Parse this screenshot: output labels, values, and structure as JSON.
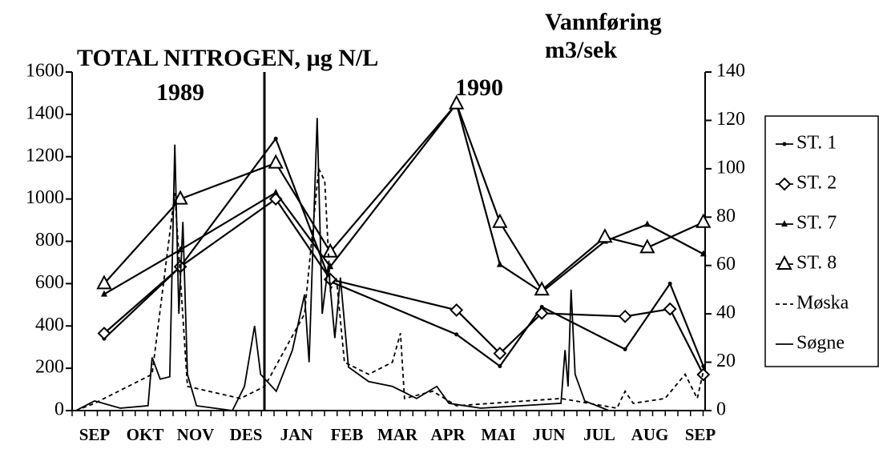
{
  "chart_data": {
    "type": "line",
    "title": "TOTAL NITROGEN,  µg N/L",
    "y2_label": [
      "Vannføring",
      "m3/sek"
    ],
    "annotations": [
      "1989",
      "1990"
    ],
    "categories": [
      "SEP",
      "OKT",
      "NOV",
      "DES",
      "JAN",
      "FEB",
      "MAR",
      "APR",
      "MAI",
      "JUN",
      "JUL",
      "AUG",
      "SEP"
    ],
    "ylim": [
      0,
      1600
    ],
    "yticks": [
      0,
      200,
      400,
      600,
      800,
      1000,
      1200,
      1400,
      1600
    ],
    "y2lim": [
      0,
      140
    ],
    "y2ticks": [
      0,
      20,
      40,
      60,
      80,
      100,
      120,
      140
    ],
    "series": [
      {
        "name": "ST. 1",
        "color": "#000000",
        "marker": "dot",
        "x": [
          0.19,
          1.7,
          3.59,
          4.67,
          7.17,
          8.03,
          8.86,
          10.51,
          11.4,
          12.06
        ],
        "values": [
          340,
          680,
          1285,
          610,
          360,
          210,
          490,
          290,
          600,
          210
        ]
      },
      {
        "name": "ST. 2",
        "color": "#000000",
        "marker": "diamond",
        "x": [
          0.19,
          1.7,
          3.59,
          4.67,
          7.17,
          8.03,
          8.86,
          10.51,
          11.4,
          12.06
        ],
        "values": [
          365,
          680,
          1000,
          620,
          475,
          270,
          460,
          445,
          480,
          170
        ]
      },
      {
        "name": "ST. 7",
        "color": "#000000",
        "marker": "triangle-filled",
        "x": [
          0.19,
          1.7,
          3.59,
          4.67,
          7.17,
          8.03,
          8.86,
          10.11,
          10.95,
          12.06
        ],
        "values": [
          550,
          760,
          1030,
          680,
          1450,
          690,
          560,
          800,
          880,
          740
        ]
      },
      {
        "name": "ST. 8",
        "color": "#000000",
        "marker": "triangle-open",
        "x": [
          0.19,
          1.7,
          3.59,
          4.67,
          7.17,
          8.03,
          8.86,
          10.11,
          10.95,
          12.06
        ],
        "values": [
          600,
          1000,
          1170,
          750,
          1450,
          890,
          570,
          820,
          770,
          890
        ]
      },
      {
        "name": "Møska",
        "color": "#000000",
        "axis": "y2",
        "dashed": true,
        "x": [
          -0.37,
          0,
          1.14,
          1.59,
          1.84,
          2.89,
          3.37,
          4.16,
          4.44,
          4.56,
          4.67,
          4.79,
          4.95,
          5.43,
          5.9,
          6.06,
          6.14,
          6.7,
          7.17,
          9.24,
          10.35,
          10.51,
          10.67,
          11.3,
          11.7,
          11.94,
          12.1
        ],
        "values": [
          0,
          3,
          15,
          90,
          10,
          5,
          10,
          40,
          100,
          95,
          50,
          55,
          20,
          15,
          20,
          32,
          5,
          8,
          2,
          5,
          1,
          8,
          3,
          5,
          15,
          5,
          20
        ]
      },
      {
        "name": "Søgne",
        "color": "#000000",
        "axis": "y2",
        "x": [
          -0.37,
          0,
          0.51,
          1.06,
          1.14,
          1.3,
          1.49,
          1.59,
          1.67,
          1.75,
          1.84,
          2.02,
          2.73,
          2.97,
          3.17,
          3.29,
          3.6,
          3.92,
          4.16,
          4.25,
          4.41,
          4.51,
          4.63,
          4.76,
          4.87,
          5.03,
          5.43,
          5.9,
          6.38,
          6.78,
          7.02,
          7.65,
          9.24,
          9.32,
          9.38,
          9.44,
          9.52,
          9.71,
          10.19,
          11.94
        ],
        "values": [
          0,
          4,
          1,
          2,
          22,
          13,
          14,
          110,
          40,
          78,
          15,
          2,
          0,
          10,
          35,
          15,
          8,
          25,
          48,
          20,
          121,
          40,
          60,
          30,
          55,
          18,
          12,
          10,
          5,
          10,
          3,
          1,
          3,
          25,
          10,
          50,
          15,
          4,
          0,
          0
        ]
      }
    ]
  }
}
